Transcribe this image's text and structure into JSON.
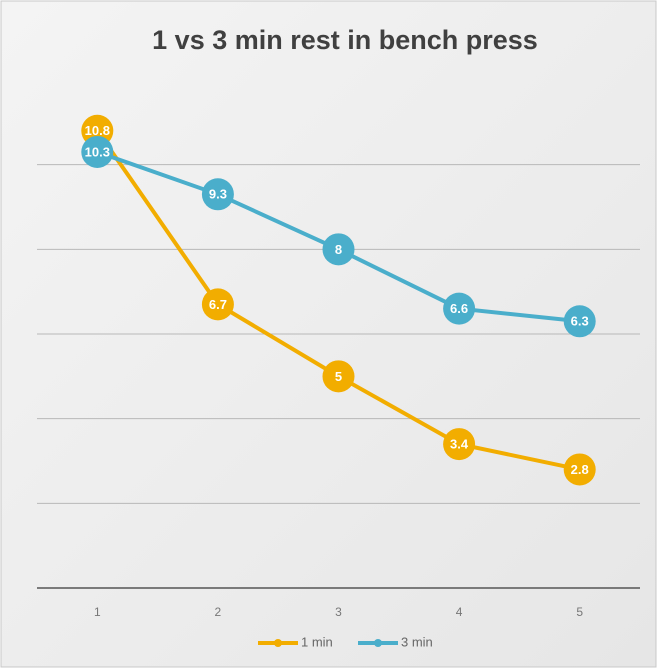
{
  "chart_data": {
    "type": "line",
    "title": "1 vs 3 min rest in bench press",
    "categories": [
      "1",
      "2",
      "3",
      "4",
      "5"
    ],
    "series": [
      {
        "name": "1 min",
        "color": "#f2ad00",
        "values": [
          10.8,
          6.7,
          5,
          3.4,
          2.8
        ]
      },
      {
        "name": "3 min",
        "color": "#4aaecb",
        "values": [
          10.3,
          9.3,
          8,
          6.6,
          6.3
        ]
      }
    ],
    "ylim": [
      0,
      12
    ],
    "yticks": [
      0,
      2,
      4,
      6,
      8,
      10
    ],
    "grid": true,
    "legend": "bottom"
  }
}
